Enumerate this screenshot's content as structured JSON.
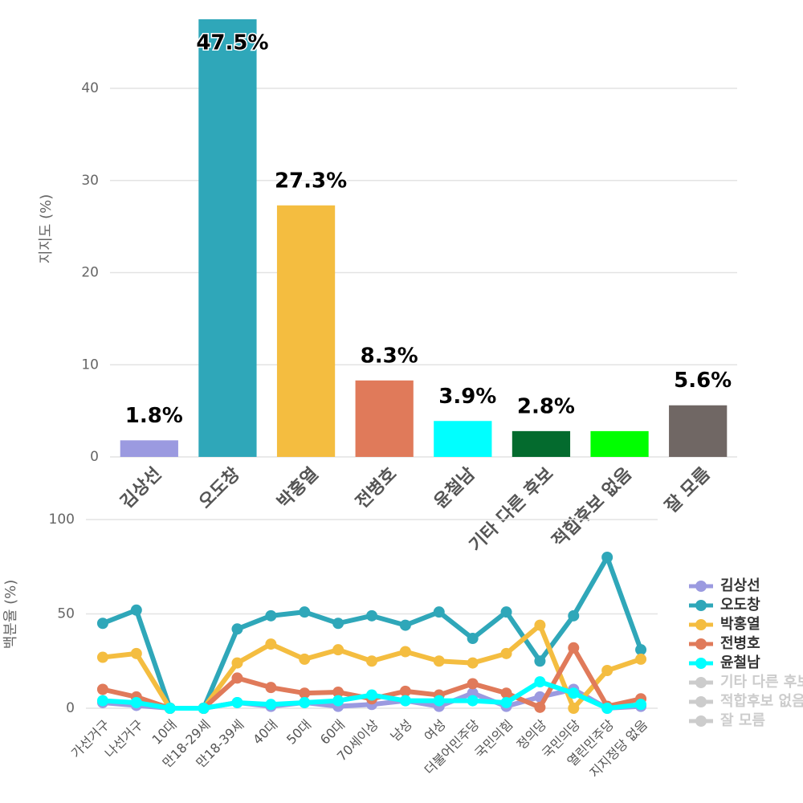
{
  "chart_data": [
    {
      "type": "bar",
      "y_label": "지지도 (%)",
      "categories": [
        "김상선",
        "오도창",
        "박홍열",
        "전병호",
        "윤철남",
        "기타 다른 후보",
        "적합후보 없음",
        "잘 모름"
      ],
      "values": [
        1.8,
        47.5,
        27.3,
        8.3,
        3.9,
        2.8,
        2.8,
        5.6
      ],
      "value_labels": [
        "1.8%",
        "47.5%",
        "27.3%",
        "8.3%",
        "3.9%",
        "2.8%",
        null,
        "5.6%"
      ],
      "colors": [
        "#9b9ae0",
        "#2fa7b9",
        "#f4bd40",
        "#e07a5a",
        "#00ffff",
        "#046b2e",
        "#00ff00",
        "#706764"
      ],
      "ylim": [
        0,
        47.5
      ],
      "yticks": [
        0,
        10,
        20,
        30,
        40
      ],
      "grid": true
    },
    {
      "type": "line",
      "y_label": "백분율 (%)",
      "categories": [
        "가선거구",
        "나선거구",
        "10대",
        "만18-29세",
        "만18-39세",
        "40대",
        "50대",
        "60대",
        "70세이상",
        "남성",
        "여성",
        "더불어민주당",
        "국민의힘",
        "정의당",
        "국민의당",
        "열린민주당",
        "지지정당 없음"
      ],
      "series": [
        {
          "name": "김상선",
          "color": "#9b9ae0",
          "values": [
            3,
            1.5,
            0,
            0,
            3,
            1,
            3,
            1,
            2,
            4,
            1,
            8,
            1,
            6,
            10,
            0,
            1
          ]
        },
        {
          "name": "오도창",
          "color": "#2fa7b9",
          "values": [
            45,
            52,
            0,
            0,
            42,
            49,
            51,
            45,
            49,
            44,
            51,
            37,
            51,
            25,
            49,
            80,
            31
          ]
        },
        {
          "name": "박홍열",
          "color": "#f4bd40",
          "values": [
            27,
            29,
            0,
            0,
            24,
            34,
            26,
            31,
            25,
            30,
            25,
            24,
            29,
            44,
            0,
            20,
            26
          ]
        },
        {
          "name": "전병호",
          "color": "#e07a5a",
          "values": [
            10,
            6,
            0,
            0,
            16,
            11,
            8,
            8.5,
            5,
            9,
            7,
            13,
            8,
            0.5,
            32,
            1,
            5
          ]
        },
        {
          "name": "윤철남",
          "color": "#00ffff",
          "values": [
            4,
            3,
            0,
            0,
            3,
            2,
            3,
            4,
            7,
            4,
            4,
            4,
            3,
            14,
            8,
            0,
            2
          ]
        },
        {
          "name": "기타 다른 후보",
          "color": "#cccccc",
          "visible": false,
          "values": [
            null,
            null,
            null,
            null,
            null,
            null,
            null,
            null,
            null,
            null,
            null,
            null,
            null,
            null,
            null,
            null,
            null
          ]
        },
        {
          "name": "적합후보 없음",
          "color": "#cccccc",
          "visible": false,
          "values": [
            null,
            null,
            null,
            null,
            null,
            null,
            null,
            null,
            null,
            null,
            null,
            null,
            null,
            null,
            null,
            null,
            null
          ]
        },
        {
          "name": "잘 모름",
          "color": "#cccccc",
          "visible": false,
          "values": [
            null,
            null,
            null,
            null,
            null,
            null,
            null,
            null,
            null,
            null,
            null,
            null,
            null,
            null,
            null,
            null,
            null
          ]
        }
      ],
      "ylim": [
        0,
        100
      ],
      "yticks": [
        0,
        50,
        100
      ],
      "grid": true,
      "legend": "right"
    }
  ]
}
